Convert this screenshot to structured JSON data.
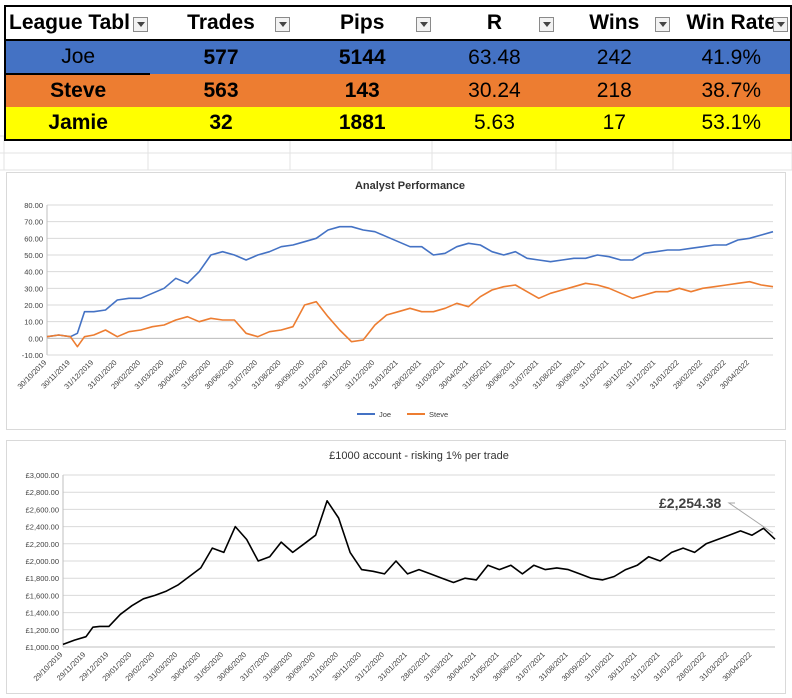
{
  "table": {
    "headers": [
      "League Tabl",
      "Trades",
      "Pips",
      "R",
      "Wins",
      "Win Rate"
    ],
    "rows": [
      {
        "name": "Joe",
        "trades": "577",
        "pips": "5144",
        "r": "63.48",
        "wins": "242",
        "win_rate": "41.9%",
        "color": "#4472c4"
      },
      {
        "name": "Steve",
        "trades": "563",
        "pips": "143",
        "r": "30.24",
        "wins": "218",
        "win_rate": "38.7%",
        "color": "#ed7d31"
      },
      {
        "name": "Jamie",
        "trades": "32",
        "pips": "1881",
        "r": "5.63",
        "wins": "17",
        "win_rate": "53.1%",
        "color": "#ffff00"
      }
    ]
  },
  "chart_data": [
    {
      "type": "line",
      "title": "Analyst Performance",
      "xlabel": "",
      "ylabel": "",
      "ylim": [
        -10,
        80
      ],
      "yticks": [
        "80.00",
        "70.00",
        "60.00",
        "50.00",
        "40.00",
        "30.00",
        "20.00",
        "10.00",
        "0.00",
        "-10.00"
      ],
      "xticks": [
        "30/10/2019",
        "30/11/2019",
        "31/12/2019",
        "31/01/2020",
        "29/02/2020",
        "31/03/2020",
        "30/04/2020",
        "31/05/2020",
        "30/06/2020",
        "31/07/2020",
        "31/08/2020",
        "30/09/2020",
        "31/10/2020",
        "30/11/2020",
        "31/12/2020",
        "31/01/2021",
        "28/02/2021",
        "31/03/2021",
        "30/04/2021",
        "31/05/2021",
        "30/06/2021",
        "31/07/2021",
        "31/08/2021",
        "30/09/2021",
        "31/10/2021",
        "30/11/2021",
        "31/12/2021",
        "31/01/2022",
        "28/02/2022",
        "31/03/2022",
        "30/04/2022"
      ],
      "legend_position": "bottom",
      "series": [
        {
          "name": "Joe",
          "color": "#4472c4",
          "x": [
            0,
            0.5,
            1,
            1.3,
            1.6,
            2,
            2.5,
            3,
            3.5,
            4,
            4.5,
            5,
            5.5,
            6,
            6.5,
            7,
            7.5,
            8,
            8.5,
            9,
            9.5,
            10,
            10.5,
            11,
            11.5,
            12,
            12.5,
            13,
            13.5,
            14,
            14.5,
            15,
            15.5,
            16,
            16.5,
            17,
            17.5,
            18,
            18.5,
            19,
            19.5,
            20,
            20.5,
            21,
            21.5,
            22,
            22.5,
            23,
            23.5,
            24,
            24.5,
            25,
            25.5,
            26,
            26.5,
            27,
            27.5,
            28,
            28.5,
            29,
            29.5,
            30,
            30.5,
            31
          ],
          "y": [
            1,
            2,
            1,
            3,
            16,
            16,
            17,
            23,
            24,
            24,
            27,
            30,
            36,
            33,
            40,
            50,
            52,
            50,
            47,
            50,
            52,
            55,
            56,
            58,
            60,
            65,
            67,
            67,
            65,
            64,
            61,
            58,
            55,
            55,
            50,
            51,
            55,
            57,
            56,
            52,
            50,
            52,
            48,
            47,
            46,
            47,
            48,
            48,
            50,
            49,
            47,
            47,
            51,
            52,
            53,
            53,
            54,
            55,
            56,
            56,
            59,
            60,
            62,
            64
          ]
        },
        {
          "name": "Steve",
          "color": "#ed7d31",
          "x": [
            0,
            0.5,
            1,
            1.3,
            1.6,
            2,
            2.5,
            3,
            3.5,
            4,
            4.5,
            5,
            5.5,
            6,
            6.5,
            7,
            7.5,
            8,
            8.5,
            9,
            9.5,
            10,
            10.5,
            11,
            11.5,
            12,
            12.5,
            13,
            13.5,
            14,
            14.5,
            15,
            15.5,
            16,
            16.5,
            17,
            17.5,
            18,
            18.5,
            19,
            19.5,
            20,
            20.5,
            21,
            21.5,
            22,
            22.5,
            23,
            23.5,
            24,
            24.5,
            25,
            25.5,
            26,
            26.5,
            27,
            27.5,
            28,
            28.5,
            29,
            29.5,
            30,
            30.5,
            31
          ],
          "y": [
            1,
            2,
            1,
            -5,
            1,
            2,
            5,
            1,
            4,
            5,
            7,
            8,
            11,
            13,
            10,
            12,
            11,
            11,
            3,
            1,
            4,
            5,
            7,
            20,
            22,
            13,
            5,
            -2,
            -1,
            8,
            14,
            16,
            18,
            16,
            16,
            18,
            21,
            19,
            25,
            29,
            31,
            32,
            28,
            24,
            27,
            29,
            31,
            33,
            32,
            30,
            27,
            24,
            26,
            28,
            28,
            30,
            28,
            30,
            31,
            32,
            33,
            34,
            32,
            31
          ]
        }
      ]
    },
    {
      "type": "line",
      "title": "£1000 account - risking 1% per trade",
      "xlabel": "",
      "ylabel": "",
      "ylim": [
        1000,
        3000
      ],
      "yticks": [
        "£3,000.00",
        "£2,800.00",
        "£2,600.00",
        "£2,400.00",
        "£2,200.00",
        "£2,000.00",
        "£1,800.00",
        "£1,600.00",
        "£1,400.00",
        "£1,200.00",
        "£1,000.00"
      ],
      "xticks": [
        "29/10/2019",
        "29/11/2019",
        "29/12/2019",
        "29/01/2020",
        "29/02/2020",
        "31/03/2020",
        "30/04/2020",
        "31/05/2020",
        "30/06/2020",
        "31/07/2020",
        "31/08/2020",
        "30/09/2020",
        "31/10/2020",
        "30/11/2020",
        "31/12/2020",
        "31/01/2021",
        "28/02/2021",
        "31/03/2021",
        "30/04/2021",
        "31/05/2021",
        "30/06/2021",
        "31/07/2021",
        "31/08/2021",
        "30/09/2021",
        "31/10/2021",
        "30/11/2021",
        "31/12/2021",
        "31/01/2022",
        "28/02/2022",
        "31/03/2022",
        "30/04/2022"
      ],
      "annotation": "£2,254.38",
      "series": [
        {
          "name": "",
          "color": "#000000",
          "x": [
            0,
            0.5,
            1,
            1.3,
            1.6,
            2,
            2.5,
            3,
            3.5,
            4,
            4.5,
            5,
            5.5,
            6,
            6.5,
            7,
            7.5,
            8,
            8.5,
            9,
            9.5,
            10,
            10.5,
            11,
            11.5,
            12,
            12.5,
            13,
            13.5,
            14,
            14.5,
            15,
            15.5,
            16,
            16.5,
            17,
            17.5,
            18,
            18.5,
            19,
            19.5,
            20,
            20.5,
            21,
            21.5,
            22,
            22.5,
            23,
            23.5,
            24,
            24.5,
            25,
            25.5,
            26,
            26.5,
            27,
            27.5,
            28,
            28.5,
            29,
            29.5,
            30,
            30.5,
            31
          ],
          "y": [
            1030,
            1080,
            1120,
            1230,
            1240,
            1240,
            1380,
            1480,
            1560,
            1600,
            1650,
            1720,
            1820,
            1920,
            2150,
            2100,
            2400,
            2250,
            2000,
            2050,
            2220,
            2100,
            2200,
            2300,
            2700,
            2500,
            2100,
            1900,
            1880,
            1850,
            2000,
            1850,
            1900,
            1850,
            1800,
            1750,
            1800,
            1780,
            1950,
            1900,
            1950,
            1850,
            1950,
            1900,
            1920,
            1900,
            1850,
            1800,
            1780,
            1820,
            1900,
            1950,
            2050,
            2000,
            2100,
            2150,
            2100,
            2200,
            2250,
            2300,
            2350,
            2300,
            2380,
            2254
          ]
        }
      ]
    }
  ]
}
